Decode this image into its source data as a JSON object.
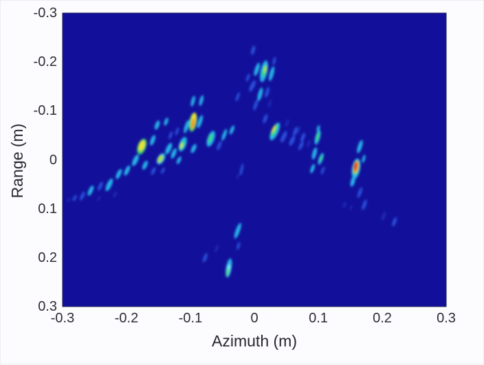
{
  "figure": {
    "xlabel": "Azimuth (m)",
    "ylabel": "Range (m)"
  },
  "chart_data": {
    "type": "heatmap",
    "description": "SAR image of an aircraft rendered in a jet colormap on a dark navy background; bright point-spread streaks trace the nose, swept wings, two engine hot spots and the tail",
    "title": "",
    "xlabel": "Azimuth (m)",
    "ylabel": "Range (m)",
    "xlim": [
      -0.3,
      0.3
    ],
    "ylim": [
      -0.3,
      0.3
    ],
    "y_direction": "reversed",
    "xticks": [
      "-0.3",
      "-0.2",
      "-0.1",
      "0",
      "0.1",
      "0.2",
      "0.3"
    ],
    "yticks": [
      "-0.3",
      "-0.2",
      "-0.1",
      "0",
      "0.1",
      "0.2",
      "0.3"
    ],
    "grid": false,
    "legend": null,
    "colormap": "jet",
    "background_color": "#12109a",
    "border_color": "#1c1c52",
    "intensity_palette": [
      "#2438c4",
      "#2d5ce8",
      "#27bdee",
      "#86eef0",
      "#3cdc6e",
      "#b4e434",
      "#f0e52e",
      "#f8991c",
      "#e23312"
    ],
    "scatterer_columns": [
      "azimuth_m",
      "range_m",
      "streak_rx_px",
      "streak_ry_px",
      "tilt_deg",
      "intensity_level"
    ],
    "scatterers": [
      [
        -0.002,
        -0.224,
        2.5,
        7,
        15,
        1
      ],
      [
        0.015,
        -0.181,
        5,
        16,
        12,
        2
      ],
      [
        0.016,
        -0.182,
        3,
        9,
        12,
        4
      ],
      [
        0.017,
        -0.185,
        1.8,
        5,
        12,
        5
      ],
      [
        0.004,
        -0.185,
        3,
        10,
        18,
        2
      ],
      [
        0.027,
        -0.176,
        3,
        11,
        15,
        2
      ],
      [
        -0.003,
        -0.151,
        3,
        9,
        25,
        1
      ],
      [
        0.009,
        -0.134,
        3,
        10,
        15,
        2
      ],
      [
        0.02,
        -0.138,
        2.5,
        8,
        15,
        1
      ],
      [
        0.002,
        -0.112,
        2.5,
        8,
        18,
        1
      ],
      [
        0.024,
        -0.115,
        2,
        6,
        15,
        0
      ],
      [
        0.031,
        -0.202,
        2,
        6,
        15,
        1
      ],
      [
        -0.01,
        -0.168,
        2,
        6,
        20,
        1
      ],
      [
        -0.026,
        -0.129,
        2,
        7,
        20,
        1
      ],
      [
        0.017,
        -0.084,
        2.5,
        7,
        20,
        1
      ],
      [
        0.032,
        -0.058,
        5,
        14,
        25,
        2
      ],
      [
        0.031,
        -0.06,
        3,
        10,
        25,
        4
      ],
      [
        0.03,
        -0.063,
        1.6,
        6,
        25,
        6
      ],
      [
        0.046,
        -0.047,
        3,
        9,
        25,
        1
      ],
      [
        0.059,
        -0.039,
        3,
        8,
        25,
        1
      ],
      [
        0.073,
        -0.029,
        2.5,
        7,
        25,
        1
      ],
      [
        0.051,
        -0.075,
        2,
        6,
        20,
        0
      ],
      [
        0.069,
        -0.061,
        2,
        6,
        20,
        0
      ],
      [
        -0.02,
        0.02,
        2,
        9,
        12,
        1
      ],
      [
        -0.026,
        0.034,
        1.5,
        4,
        12,
        0
      ],
      [
        -0.096,
        -0.12,
        2.5,
        8,
        15,
        2
      ],
      [
        -0.083,
        -0.121,
        2.5,
        8,
        15,
        2
      ],
      [
        -0.096,
        -0.077,
        5.5,
        14,
        10,
        4
      ],
      [
        -0.095,
        -0.084,
        3.5,
        9,
        10,
        6
      ],
      [
        -0.096,
        -0.074,
        2.8,
        8,
        10,
        7
      ],
      [
        -0.106,
        -0.068,
        2.8,
        10,
        18,
        2
      ],
      [
        -0.085,
        -0.078,
        2.8,
        10,
        18,
        2
      ],
      [
        -0.112,
        -0.032,
        5,
        11,
        20,
        2
      ],
      [
        -0.113,
        -0.03,
        3,
        7,
        20,
        4
      ],
      [
        -0.114,
        -0.029,
        1.6,
        4,
        20,
        6
      ],
      [
        -0.126,
        -0.013,
        3,
        8,
        22,
        2
      ],
      [
        -0.095,
        -0.023,
        3,
        7,
        25,
        2
      ],
      [
        -0.131,
        -0.05,
        2,
        6,
        20,
        1
      ],
      [
        -0.068,
        -0.043,
        5,
        12,
        20,
        2
      ],
      [
        -0.069,
        -0.044,
        2.5,
        7,
        20,
        4
      ],
      [
        -0.047,
        -0.051,
        2.5,
        9,
        20,
        2
      ],
      [
        -0.035,
        -0.061,
        2.5,
        7,
        22,
        2
      ],
      [
        -0.055,
        -0.029,
        2.5,
        7,
        22,
        1
      ],
      [
        -0.121,
        -0.058,
        2,
        6,
        20,
        1
      ],
      [
        -0.134,
        -0.023,
        3.5,
        9,
        25,
        2
      ],
      [
        -0.146,
        -0.002,
        5,
        9,
        30,
        2
      ],
      [
        -0.147,
        -0.002,
        3.5,
        6,
        30,
        5
      ],
      [
        -0.159,
        -0.04,
        3,
        8,
        20,
        2
      ],
      [
        -0.152,
        -0.071,
        3,
        7,
        20,
        2
      ],
      [
        -0.138,
        -0.078,
        2.5,
        6,
        20,
        2
      ],
      [
        -0.176,
        -0.027,
        6,
        12,
        20,
        4
      ],
      [
        -0.176,
        -0.029,
        4,
        8,
        20,
        6
      ],
      [
        -0.186,
        0.001,
        3.5,
        9,
        25,
        2
      ],
      [
        -0.171,
        0.011,
        3,
        7,
        25,
        2
      ],
      [
        -0.199,
        0.022,
        3,
        8,
        25,
        2
      ],
      [
        -0.212,
        0.029,
        3,
        8,
        25,
        2
      ],
      [
        -0.227,
        0.051,
        3.5,
        10,
        25,
        2
      ],
      [
        -0.241,
        0.054,
        2.5,
        7,
        25,
        1
      ],
      [
        -0.256,
        0.063,
        3,
        8,
        25,
        2
      ],
      [
        -0.269,
        0.074,
        2.5,
        7,
        25,
        1
      ],
      [
        -0.281,
        0.078,
        2,
        5,
        25,
        1
      ],
      [
        -0.29,
        0.082,
        1.5,
        4,
        25,
        0
      ],
      [
        -0.218,
        0.071,
        2,
        5,
        25,
        0
      ],
      [
        -0.243,
        0.079,
        1.5,
        4,
        25,
        0
      ],
      [
        -0.158,
        0.023,
        2.5,
        6,
        25,
        1
      ],
      [
        -0.143,
        0.022,
        2,
        5,
        25,
        1
      ],
      [
        -0.118,
        0.001,
        2.5,
        6,
        25,
        2
      ],
      [
        0.064,
        -0.058,
        2.5,
        7,
        20,
        1
      ],
      [
        0.076,
        -0.046,
        2.5,
        7,
        20,
        1
      ],
      [
        0.085,
        -0.033,
        2,
        6,
        20,
        0
      ],
      [
        0.099,
        -0.046,
        3.5,
        11,
        15,
        2
      ],
      [
        0.099,
        -0.047,
        2,
        7,
        15,
        4
      ],
      [
        0.094,
        -0.013,
        3,
        9,
        15,
        2
      ],
      [
        0.104,
        -0.002,
        3,
        9,
        20,
        2
      ],
      [
        0.104,
        -0.003,
        1.8,
        5,
        20,
        4
      ],
      [
        0.091,
        0.018,
        2.5,
        7,
        20,
        2
      ],
      [
        0.107,
        0.022,
        2,
        6,
        20,
        1
      ],
      [
        0.1,
        -0.064,
        2,
        5,
        15,
        2
      ],
      [
        0.165,
        -0.027,
        3,
        10,
        18,
        2
      ],
      [
        0.159,
        0.018,
        6,
        15,
        10,
        2
      ],
      [
        0.159,
        0.016,
        4.5,
        11,
        10,
        4
      ],
      [
        0.159,
        0.015,
        3.5,
        9,
        10,
        7
      ],
      [
        0.158,
        0.013,
        2.4,
        6.5,
        10,
        8
      ],
      [
        0.154,
        0.044,
        3,
        8,
        15,
        2
      ],
      [
        0.171,
        -0.002,
        2,
        6,
        15,
        2
      ],
      [
        0.165,
        0.067,
        2.5,
        8,
        20,
        1
      ],
      [
        0.172,
        0.092,
        2.5,
        8,
        20,
        1
      ],
      [
        0.141,
        0.092,
        2,
        5,
        25,
        0
      ],
      [
        0.151,
        0.098,
        1.5,
        4,
        25,
        0
      ],
      [
        0.202,
        0.115,
        2.5,
        7,
        20,
        0
      ],
      [
        0.219,
        0.127,
        2.5,
        7,
        20,
        1
      ],
      [
        -0.026,
        0.145,
        3,
        12,
        20,
        2
      ],
      [
        -0.025,
        0.176,
        2,
        6,
        15,
        1
      ],
      [
        -0.04,
        0.221,
        4,
        14,
        10,
        2
      ],
      [
        -0.041,
        0.226,
        2.5,
        9,
        10,
        3
      ],
      [
        -0.042,
        0.23,
        1.8,
        6,
        10,
        4
      ],
      [
        -0.077,
        0.2,
        2.5,
        7,
        20,
        1
      ],
      [
        -0.059,
        0.181,
        2,
        6,
        20,
        0
      ]
    ]
  }
}
